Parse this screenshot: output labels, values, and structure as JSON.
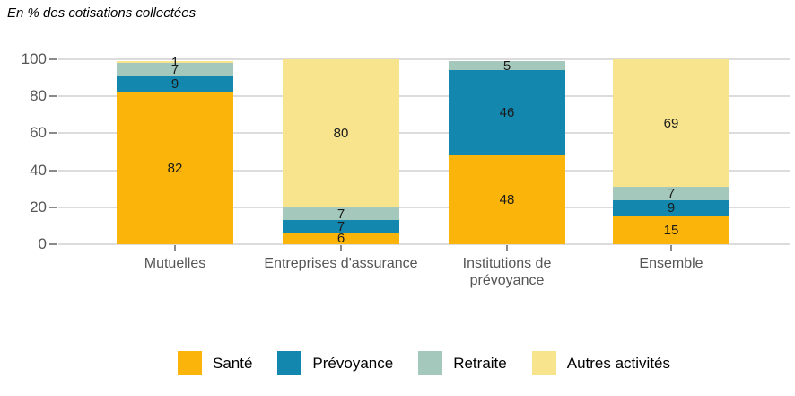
{
  "title": "En % des cotisations collectées",
  "chart_data": {
    "type": "bar",
    "stacked": true,
    "title": "En % des cotisations collectées",
    "categories": [
      "Mutuelles",
      "Entreprises d'assurance",
      "Institutions de\nprévoyance",
      "Ensemble"
    ],
    "series": [
      {
        "name": "Santé",
        "color": "#FBB50A",
        "values": [
          82,
          6,
          48,
          15
        ]
      },
      {
        "name": "Prévoyance",
        "color": "#1387AD",
        "values": [
          9,
          7,
          46,
          9
        ]
      },
      {
        "name": "Retraite",
        "color": "#A4C8BB",
        "values": [
          7,
          7,
          5,
          7
        ]
      },
      {
        "name": "Autres activités",
        "color": "#F8E48C",
        "values": [
          1,
          80,
          0,
          69
        ]
      }
    ],
    "xlabel": "",
    "ylabel": "",
    "yticks": [
      0,
      20,
      40,
      60,
      80,
      100
    ],
    "ylim": [
      0,
      100
    ],
    "grid": "horizontal",
    "legend_position": "bottom",
    "value_labels": true
  },
  "colors": {
    "background": "#FFFFFF",
    "gridline": "#DCDCDC",
    "axis_text": "#555555",
    "tick_mark": "#8A8A8A",
    "value_label_text": "#1A1A1A"
  }
}
